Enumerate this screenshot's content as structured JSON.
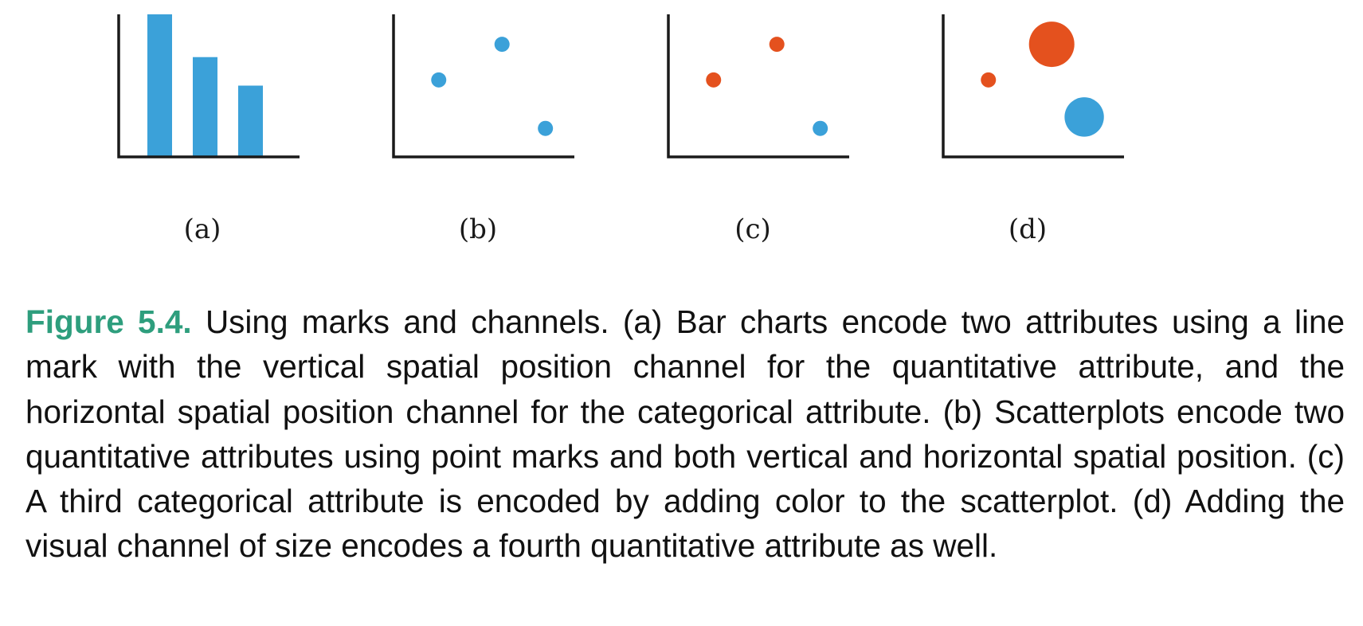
{
  "colors": {
    "blue": "#3ba1d9",
    "orange": "#e4511e",
    "axis": "#1a1a1a",
    "caption_label": "#2e9e7d"
  },
  "panels": [
    {
      "label": "(a)"
    },
    {
      "label": "(b)"
    },
    {
      "label": "(c)"
    },
    {
      "label": "(d)"
    }
  ],
  "chart_data": [
    {
      "type": "bar",
      "title": "",
      "xlabel": "",
      "ylabel": "",
      "categories": [
        "",
        "",
        ""
      ],
      "values": [
        100,
        70,
        50
      ],
      "ylim": [
        0,
        100
      ],
      "color": "blue"
    },
    {
      "type": "scatter",
      "title": "",
      "xlabel": "",
      "ylabel": "",
      "xlim": [
        0,
        100
      ],
      "ylim": [
        0,
        100
      ],
      "points": [
        {
          "x": 25,
          "y": 54,
          "color": "blue"
        },
        {
          "x": 60,
          "y": 79,
          "color": "blue"
        },
        {
          "x": 84,
          "y": 20,
          "color": "blue"
        }
      ]
    },
    {
      "type": "scatter",
      "title": "",
      "xlabel": "",
      "ylabel": "",
      "xlim": [
        0,
        100
      ],
      "ylim": [
        0,
        100
      ],
      "points": [
        {
          "x": 25,
          "y": 54,
          "color": "orange"
        },
        {
          "x": 60,
          "y": 79,
          "color": "orange"
        },
        {
          "x": 84,
          "y": 20,
          "color": "blue"
        }
      ]
    },
    {
      "type": "scatter",
      "title": "",
      "xlabel": "",
      "ylabel": "",
      "xlim": [
        0,
        100
      ],
      "ylim": [
        0,
        100
      ],
      "points": [
        {
          "x": 25,
          "y": 54,
          "color": "orange",
          "size": 1
        },
        {
          "x": 60,
          "y": 79,
          "color": "orange",
          "size": 3
        },
        {
          "x": 78,
          "y": 28,
          "color": "blue",
          "size": 2.6
        }
      ]
    }
  ],
  "caption": {
    "label": "Figure 5.4.",
    "text": "Using marks and channels. (a) Bar charts encode two attributes using a line mark with the vertical spatial position channel for the quantitative attribute, and the horizontal spatial position channel for the categorical attribute.  (b) Scatterplots encode two quantitative attributes using point marks and both vertical and horizontal spatial position.  (c) A third categorical attribute is encoded by adding color to the scatterplot.  (d) Adding the visual channel of size encodes a fourth quantitative attribute as well."
  }
}
